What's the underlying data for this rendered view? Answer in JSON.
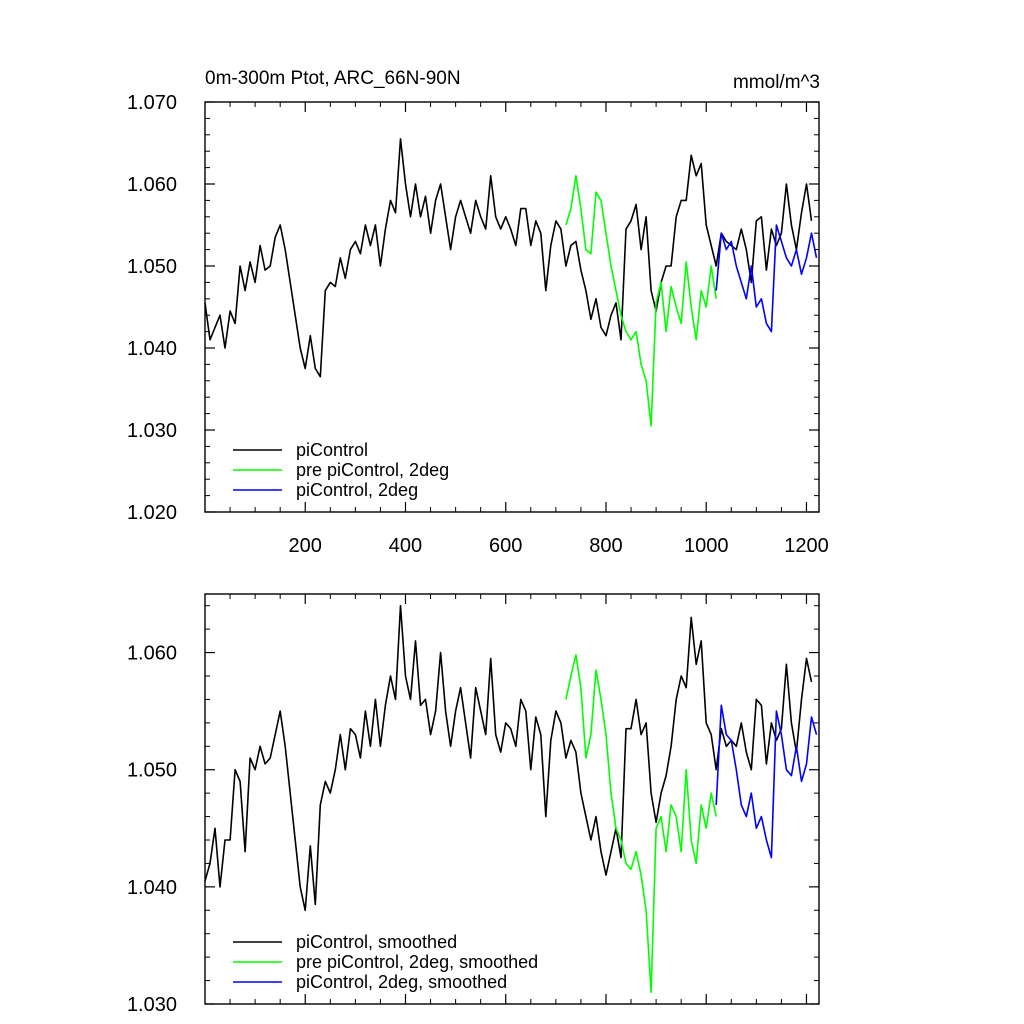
{
  "chart_data": [
    {
      "type": "line",
      "title": "0m-300m Ptot, ARC_66N-90N",
      "units": "mmol/m^3",
      "xlim": [
        0,
        1225
      ],
      "ylim": [
        1.02,
        1.07
      ],
      "xticks": [
        200,
        400,
        600,
        800,
        1000,
        1200
      ],
      "xtick_labels": [
        "200",
        "400",
        "600",
        "800",
        "1000",
        "1200"
      ],
      "yticks": [
        1.02,
        1.03,
        1.04,
        1.05,
        1.06,
        1.07
      ],
      "ytick_labels": [
        "1.020",
        "1.030",
        "1.040",
        "1.050",
        "1.060",
        "1.070"
      ],
      "legend_position": "bottom-left",
      "series": [
        {
          "name": "piControl",
          "color": "#000000",
          "x": [
            0,
            10,
            20,
            30,
            40,
            50,
            60,
            70,
            80,
            90,
            100,
            110,
            120,
            130,
            140,
            150,
            160,
            170,
            180,
            190,
            200,
            210,
            220,
            230,
            240,
            250,
            260,
            270,
            280,
            290,
            300,
            310,
            320,
            330,
            340,
            350,
            360,
            370,
            380,
            390,
            400,
            410,
            420,
            430,
            440,
            450,
            460,
            470,
            480,
            490,
            500,
            510,
            520,
            530,
            540,
            550,
            560,
            570,
            580,
            590,
            600,
            610,
            620,
            630,
            640,
            650,
            660,
            670,
            680,
            690,
            700,
            710,
            720,
            730,
            740,
            750,
            760,
            770,
            780,
            790,
            800,
            810,
            820,
            830,
            840,
            850,
            860,
            870,
            880,
            890,
            900,
            910,
            920,
            930,
            940,
            950,
            960,
            970,
            980,
            990,
            1000,
            1010,
            1020,
            1030,
            1040,
            1050,
            1060,
            1070,
            1080,
            1090,
            1100,
            1110,
            1120,
            1130,
            1140,
            1150,
            1160,
            1170,
            1180,
            1190,
            1200,
            1210
          ],
          "values": [
            1.0455,
            1.041,
            1.0425,
            1.044,
            1.04,
            1.0445,
            1.043,
            1.05,
            1.047,
            1.0505,
            1.048,
            1.0525,
            1.0495,
            1.05,
            1.0535,
            1.055,
            1.052,
            1.048,
            1.044,
            1.04,
            1.0375,
            1.0415,
            1.0375,
            1.0365,
            1.047,
            1.048,
            1.0475,
            1.051,
            1.0485,
            1.052,
            1.053,
            1.0515,
            1.055,
            1.0525,
            1.055,
            1.05,
            1.0545,
            1.058,
            1.0565,
            1.0655,
            1.06,
            1.056,
            1.06,
            1.056,
            1.0585,
            1.054,
            1.058,
            1.06,
            1.056,
            1.052,
            1.056,
            1.058,
            1.056,
            1.054,
            1.058,
            1.056,
            1.0545,
            1.061,
            1.056,
            1.0545,
            1.056,
            1.0545,
            1.0525,
            1.057,
            1.057,
            1.0525,
            1.0555,
            1.054,
            1.047,
            1.0525,
            1.0555,
            1.0545,
            1.05,
            1.0525,
            1.053,
            1.0495,
            1.047,
            1.0435,
            1.046,
            1.0425,
            1.0415,
            1.044,
            1.0455,
            1.041,
            1.0545,
            1.0555,
            1.0575,
            1.052,
            1.056,
            1.047,
            1.0445,
            1.048,
            1.05,
            1.05,
            1.056,
            1.058,
            1.058,
            1.0635,
            1.061,
            1.0625,
            1.055,
            1.0525,
            1.05,
            1.054,
            1.053,
            1.0525,
            1.052,
            1.0545,
            1.052,
            1.048,
            1.0555,
            1.056,
            1.0495,
            1.0545,
            1.0525,
            1.054,
            1.06,
            1.055,
            1.052,
            1.0565,
            1.06,
            1.0555
          ]
        },
        {
          "name": "pre piControl, 2deg",
          "color": "#00ff00",
          "x": [
            720,
            730,
            740,
            750,
            760,
            770,
            780,
            790,
            800,
            810,
            820,
            830,
            840,
            850,
            860,
            870,
            880,
            890,
            900,
            910,
            920,
            930,
            940,
            950,
            960,
            970,
            980,
            990,
            1000,
            1010,
            1020
          ],
          "values": [
            1.055,
            1.057,
            1.061,
            1.057,
            1.052,
            1.0515,
            1.059,
            1.058,
            1.054,
            1.05,
            1.047,
            1.044,
            1.042,
            1.041,
            1.042,
            1.038,
            1.036,
            1.0305,
            1.0455,
            1.048,
            1.042,
            1.0475,
            1.045,
            1.043,
            1.0505,
            1.045,
            1.041,
            1.047,
            1.045,
            1.05,
            1.046
          ]
        },
        {
          "name": "piControl, 2deg",
          "color": "#0000ff",
          "x": [
            1020,
            1030,
            1040,
            1050,
            1060,
            1070,
            1080,
            1090,
            1100,
            1110,
            1120,
            1130,
            1140,
            1150,
            1160,
            1170,
            1180,
            1190,
            1200,
            1210,
            1220
          ],
          "values": [
            1.047,
            1.054,
            1.052,
            1.053,
            1.05,
            1.048,
            1.046,
            1.05,
            1.045,
            1.046,
            1.043,
            1.042,
            1.055,
            1.053,
            1.051,
            1.05,
            1.052,
            1.049,
            1.051,
            1.054,
            1.051
          ]
        }
      ]
    },
    {
      "type": "line",
      "title": "",
      "xlim": [
        0,
        1225
      ],
      "ylim": [
        1.03,
        1.065
      ],
      "xticks": [
        200,
        400,
        600,
        800,
        1000,
        1200
      ],
      "yticks": [
        1.03,
        1.04,
        1.05,
        1.06
      ],
      "ytick_labels": [
        "1.030",
        "1.040",
        "1.050",
        "1.060"
      ],
      "legend_position": "bottom-left",
      "series": [
        {
          "name": "piControl, smoothed",
          "color": "#000000",
          "x": [
            0,
            10,
            20,
            30,
            40,
            50,
            60,
            70,
            80,
            90,
            100,
            110,
            120,
            130,
            140,
            150,
            160,
            170,
            180,
            190,
            200,
            210,
            220,
            230,
            240,
            250,
            260,
            270,
            280,
            290,
            300,
            310,
            320,
            330,
            340,
            350,
            360,
            370,
            380,
            390,
            400,
            410,
            420,
            430,
            440,
            450,
            460,
            470,
            480,
            490,
            500,
            510,
            520,
            530,
            540,
            550,
            560,
            570,
            580,
            590,
            600,
            610,
            620,
            630,
            640,
            650,
            660,
            670,
            680,
            690,
            700,
            710,
            720,
            730,
            740,
            750,
            760,
            770,
            780,
            790,
            800,
            810,
            820,
            830,
            840,
            850,
            860,
            870,
            880,
            890,
            900,
            910,
            920,
            930,
            940,
            950,
            960,
            970,
            980,
            990,
            1000,
            1010,
            1020,
            1030,
            1040,
            1050,
            1060,
            1070,
            1080,
            1090,
            1100,
            1110,
            1120,
            1130,
            1140,
            1150,
            1160,
            1170,
            1180,
            1190,
            1200,
            1210
          ],
          "values": [
            1.0405,
            1.042,
            1.045,
            1.04,
            1.044,
            1.044,
            1.05,
            1.049,
            1.043,
            1.051,
            1.05,
            1.052,
            1.0505,
            1.051,
            1.053,
            1.055,
            1.052,
            1.048,
            1.044,
            1.04,
            1.038,
            1.0435,
            1.0385,
            1.047,
            1.049,
            1.048,
            1.05,
            1.053,
            1.05,
            1.0535,
            1.053,
            1.051,
            1.055,
            1.052,
            1.056,
            1.052,
            1.0555,
            1.058,
            1.056,
            1.064,
            1.058,
            1.056,
            1.061,
            1.0555,
            1.056,
            1.053,
            1.055,
            1.06,
            1.055,
            1.052,
            1.055,
            1.057,
            1.054,
            1.051,
            1.057,
            1.055,
            1.053,
            1.0595,
            1.053,
            1.0515,
            1.054,
            1.0535,
            1.052,
            1.056,
            1.055,
            1.05,
            1.0545,
            1.053,
            1.046,
            1.0525,
            1.055,
            1.054,
            1.051,
            1.0525,
            1.0515,
            1.048,
            1.046,
            1.044,
            1.046,
            1.043,
            1.041,
            1.043,
            1.045,
            1.0425,
            1.0535,
            1.0535,
            1.056,
            1.053,
            1.054,
            1.048,
            1.0455,
            1.048,
            1.0495,
            1.052,
            1.056,
            1.058,
            1.057,
            1.063,
            1.059,
            1.061,
            1.054,
            1.053,
            1.05,
            1.0535,
            1.052,
            1.0525,
            1.052,
            1.054,
            1.0515,
            1.05,
            1.056,
            1.0555,
            1.0505,
            1.054,
            1.0525,
            1.0535,
            1.059,
            1.054,
            1.0515,
            1.056,
            1.0595,
            1.0575
          ]
        },
        {
          "name": "pre piControl, 2deg, smoothed",
          "color": "#00ff00",
          "x": [
            720,
            730,
            740,
            750,
            760,
            770,
            780,
            790,
            800,
            810,
            820,
            830,
            840,
            850,
            860,
            870,
            880,
            890,
            900,
            910,
            920,
            930,
            940,
            950,
            960,
            970,
            980,
            990,
            1000,
            1010,
            1020
          ],
          "values": [
            1.056,
            1.058,
            1.0598,
            1.057,
            1.051,
            1.053,
            1.0585,
            1.056,
            1.053,
            1.048,
            1.045,
            1.044,
            1.042,
            1.0415,
            1.043,
            1.041,
            1.038,
            1.031,
            1.045,
            1.046,
            1.043,
            1.047,
            1.046,
            1.043,
            1.05,
            1.044,
            1.042,
            1.047,
            1.045,
            1.048,
            1.046
          ]
        },
        {
          "name": "piControl, 2deg, smoothed",
          "color": "#0000ff",
          "x": [
            1020,
            1030,
            1040,
            1050,
            1060,
            1070,
            1080,
            1090,
            1100,
            1110,
            1120,
            1130,
            1140,
            1150,
            1160,
            1170,
            1180,
            1190,
            1200,
            1210,
            1220
          ],
          "values": [
            1.047,
            1.0555,
            1.053,
            1.0525,
            1.05,
            1.047,
            1.046,
            1.048,
            1.045,
            1.046,
            1.044,
            1.0425,
            1.055,
            1.053,
            1.05,
            1.0495,
            1.052,
            1.049,
            1.0505,
            1.0545,
            1.053
          ]
        }
      ]
    }
  ]
}
